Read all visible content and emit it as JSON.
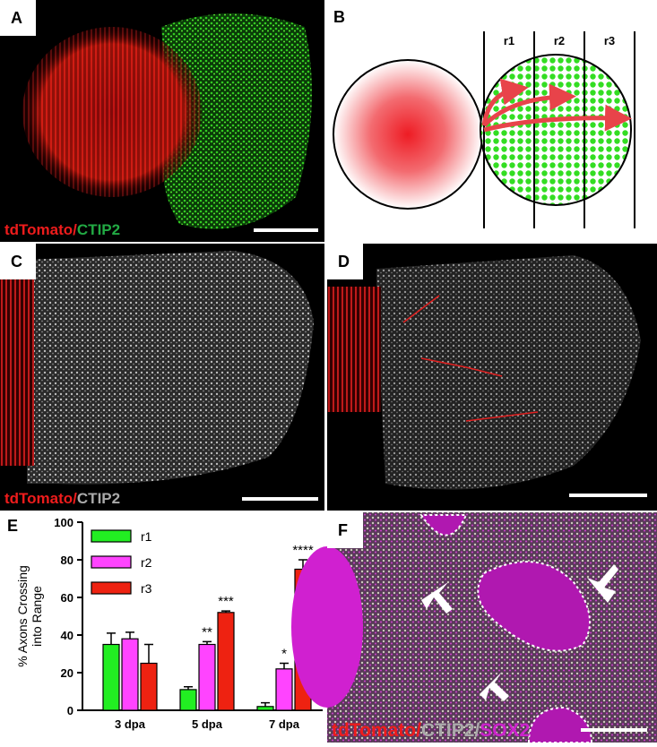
{
  "panels": [
    {
      "label": "A",
      "caption": [
        {
          "text": "tdTomato",
          "color": "#ee1c1c"
        },
        {
          "text": "/",
          "color": "#ee1c1c"
        },
        {
          "text": "CTIP2",
          "color": "#22aa44"
        }
      ]
    },
    {
      "label": "B",
      "regions": [
        "r1",
        "r2",
        "r3"
      ]
    },
    {
      "label": "C",
      "caption": [
        {
          "text": "tdTomato",
          "color": "#ee1c1c"
        },
        {
          "text": "/",
          "color": "#ee1c1c"
        },
        {
          "text": "CTIP2",
          "color": "#aaaaaa"
        }
      ]
    },
    {
      "label": "D"
    },
    {
      "label": "E"
    },
    {
      "label": "F",
      "caption": [
        {
          "text": "tdTomato",
          "color": "#ee1c1c"
        },
        {
          "text": "/",
          "color": "#ee1c1c"
        },
        {
          "text": "CTIP2",
          "color": "#aaaaaa"
        },
        {
          "text": "/",
          "color": "#aaaaaa"
        },
        {
          "text": "SOX2",
          "color": "#cc22cc"
        }
      ]
    }
  ],
  "chart_data": {
    "type": "bar",
    "y_label": [
      "% Axons Crossing",
      "into Range"
    ],
    "categories": [
      "3 dpa",
      "5 dpa",
      "7 dpa"
    ],
    "series": [
      {
        "name": "r1",
        "color": "#22ee22",
        "values": [
          35,
          11,
          2
        ],
        "errors": [
          6,
          1.5,
          2
        ],
        "significance": [
          null,
          null,
          null
        ]
      },
      {
        "name": "r2",
        "color": "#ff44ff",
        "values": [
          38,
          35,
          22
        ],
        "errors": [
          3.5,
          1.5,
          3
        ],
        "significance": [
          null,
          "**",
          "*"
        ]
      },
      {
        "name": "r3",
        "color": "#ee2211",
        "values": [
          25,
          52,
          75
        ],
        "errors": [
          10,
          0.8,
          5
        ],
        "significance": [
          null,
          "***",
          "****"
        ]
      }
    ],
    "ylim": [
      0,
      100
    ],
    "yticks": [
      0,
      20,
      40,
      60,
      80,
      100
    ],
    "legend": "upper-left"
  }
}
